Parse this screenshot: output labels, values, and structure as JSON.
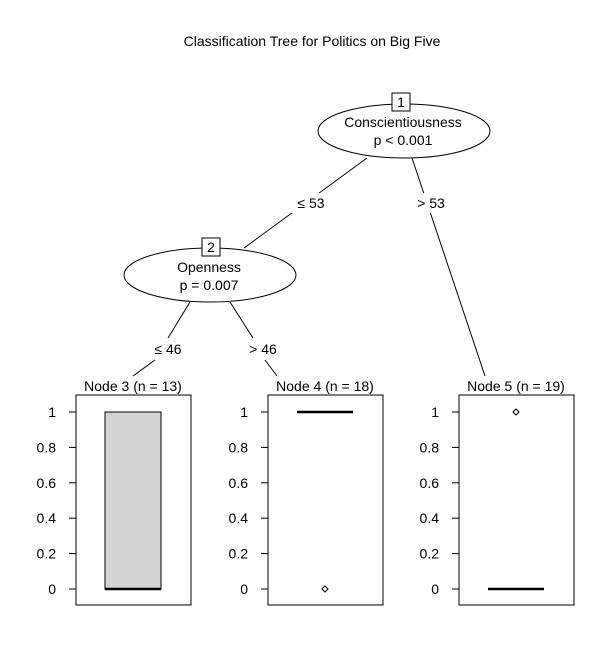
{
  "title": "Classification Tree for Politics on Big Five",
  "inner_nodes": [
    {
      "id": "1",
      "variable": "Conscientiousness",
      "pvalue": "p < 0.001"
    },
    {
      "id": "2",
      "variable": "Openness",
      "pvalue": "p = 0.007"
    }
  ],
  "edges": [
    {
      "from": "1",
      "to": "2",
      "label": "≤ 53"
    },
    {
      "from": "1",
      "to": "5",
      "label": "> 53"
    },
    {
      "from": "2",
      "to": "3",
      "label": "≤ 46"
    },
    {
      "from": "2",
      "to": "4",
      "label": "> 46"
    }
  ],
  "terminal_nodes": [
    {
      "id": "3",
      "label": "Node 3 (n = 13)",
      "box": {
        "lower": 0,
        "q1": 0,
        "median": 0,
        "q3": 1,
        "upper": 1
      },
      "outliers": []
    },
    {
      "id": "4",
      "label": "Node 4 (n = 18)",
      "box": {
        "lower": 1,
        "q1": 1,
        "median": 1,
        "q3": 1,
        "upper": 1
      },
      "outliers": [
        0
      ]
    },
    {
      "id": "5",
      "label": "Node 5 (n = 19)",
      "box": {
        "lower": 0,
        "q1": 0,
        "median": 0,
        "q3": 0,
        "upper": 0
      },
      "outliers": [
        1
      ]
    }
  ],
  "y_ticks": [
    "0",
    "0.2",
    "0.4",
    "0.6",
    "0.8",
    "1"
  ],
  "y_tick_values": [
    0,
    0.2,
    0.4,
    0.6,
    0.8,
    1
  ],
  "colors": {
    "box_fill": "#d3d3d3",
    "line": "#000000"
  }
}
